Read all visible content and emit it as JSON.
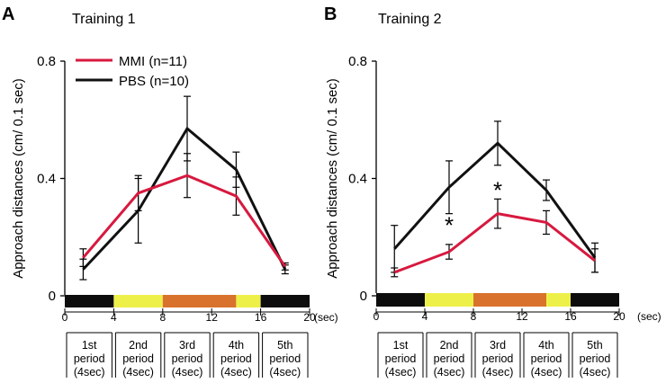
{
  "colors": {
    "mmi": "#d7193f",
    "pbs": "#111111",
    "bar_black": "#0d0d0d",
    "bar_yellow": "#eef04a",
    "bar_orange": "#d9722c"
  },
  "legend": [
    {
      "key": "mmi",
      "label": "MMI (n=11)"
    },
    {
      "key": "pbs",
      "label": "PBS (n=10)"
    }
  ],
  "period_labels": [
    [
      "1st",
      "period",
      "(4sec)"
    ],
    [
      "2nd",
      "period",
      "(4sec)"
    ],
    [
      "3rd",
      "period",
      "(4sec)"
    ],
    [
      "4th",
      "period",
      "(4sec)"
    ],
    [
      "5th",
      "period",
      "(4sec)"
    ]
  ],
  "time_unit": "(sec)",
  "chart_data": [
    {
      "panel": "A",
      "type": "line",
      "title": "Training 1",
      "ylabel": "Approach distances (cm/ 0.1 sec)",
      "xlabel": "(sec)",
      "ylim": [
        0,
        0.8
      ],
      "yticks": [
        "0",
        "0.4",
        "0.8"
      ],
      "xlim": [
        0,
        20
      ],
      "xticks": [
        "0",
        "4",
        "8",
        "12",
        "16",
        "20"
      ],
      "stimulus_bar": [
        {
          "from": 0,
          "to": 4,
          "color": "black"
        },
        {
          "from": 4,
          "to": 8,
          "color": "yellow"
        },
        {
          "from": 8,
          "to": 14,
          "color": "orange"
        },
        {
          "from": 14,
          "to": 16,
          "color": "yellow"
        },
        {
          "from": 16,
          "to": 20,
          "color": "black"
        }
      ],
      "x": [
        1.5,
        6,
        10,
        14,
        18
      ],
      "series": [
        {
          "name": "MMI (n=11)",
          "key": "mmi",
          "values": [
            0.13,
            0.35,
            0.41,
            0.34,
            0.1
          ],
          "err": [
            0.03,
            0.06,
            0.075,
            0.065,
            0.012
          ]
        },
        {
          "name": "PBS (n=10)",
          "key": "pbs",
          "values": [
            0.09,
            0.29,
            0.57,
            0.43,
            0.09
          ],
          "err": [
            0.035,
            0.11,
            0.11,
            0.06,
            0.015
          ]
        }
      ],
      "annotations": []
    },
    {
      "panel": "B",
      "type": "line",
      "title": "Training 2",
      "ylabel": "Approach distances (cm/ 0.1 sec)",
      "xlabel": "(sec)",
      "ylim": [
        0,
        0.8
      ],
      "yticks": [
        "0",
        "0.4",
        "0.8"
      ],
      "xlim": [
        0,
        20
      ],
      "xticks": [
        "0",
        "4",
        "8",
        "12",
        "16",
        "20"
      ],
      "stimulus_bar": [
        {
          "from": 0,
          "to": 4,
          "color": "black"
        },
        {
          "from": 4,
          "to": 8,
          "color": "yellow"
        },
        {
          "from": 8,
          "to": 14,
          "color": "orange"
        },
        {
          "from": 14,
          "to": 16,
          "color": "yellow"
        },
        {
          "from": 16,
          "to": 20,
          "color": "black"
        }
      ],
      "x": [
        1.5,
        6,
        10,
        14,
        18
      ],
      "series": [
        {
          "name": "MMI (n=11)",
          "key": "mmi",
          "values": [
            0.08,
            0.15,
            0.28,
            0.25,
            0.12
          ],
          "err": [
            0.015,
            0.025,
            0.05,
            0.04,
            0.04
          ]
        },
        {
          "name": "PBS (n=10)",
          "key": "pbs",
          "values": [
            0.16,
            0.37,
            0.52,
            0.36,
            0.13
          ],
          "err": [
            0.08,
            0.09,
            0.075,
            0.035,
            0.05
          ]
        }
      ],
      "annotations": [
        {
          "x": 6,
          "y": 0.25,
          "text": "*"
        },
        {
          "x": 10,
          "y": 0.37,
          "text": "*"
        }
      ]
    }
  ]
}
